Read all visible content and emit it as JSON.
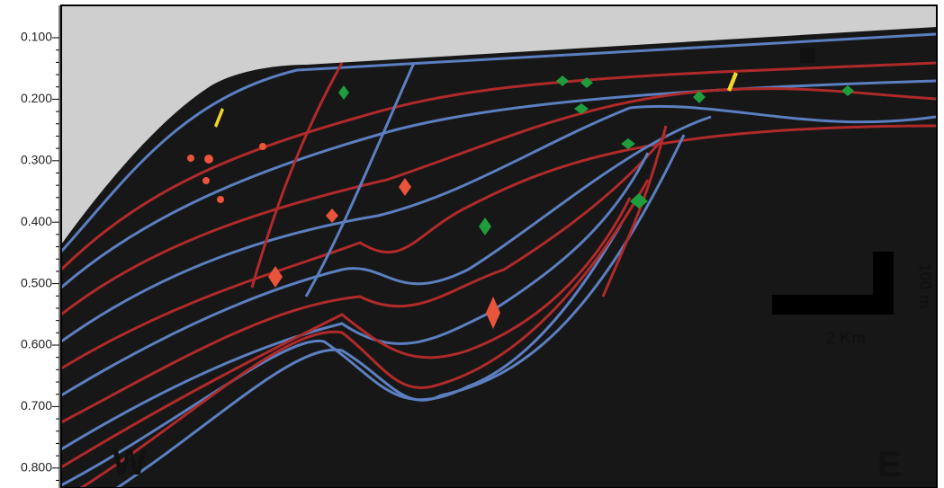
{
  "axis": {
    "labels": [
      "0.100",
      "0.200",
      "0.300",
      "0.400",
      "0.500",
      "0.600",
      "0.700",
      "0.800"
    ]
  },
  "directions": {
    "west": "W",
    "east": "E"
  },
  "scale_bar": {
    "horizontal": "2 Km",
    "vertical": "100 m"
  }
}
